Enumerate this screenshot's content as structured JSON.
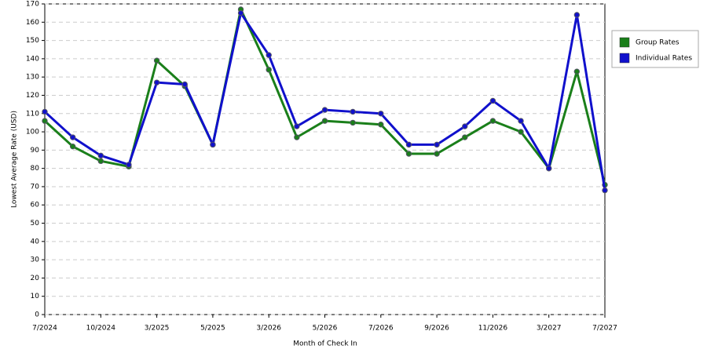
{
  "chart_data": {
    "type": "line",
    "x_label": "Month of Check In",
    "y_label": "Lowest Average Rate (USD)",
    "categories": [
      "7/2024",
      null,
      "10/2024",
      null,
      "3/2025",
      null,
      "5/2025",
      null,
      "3/2026",
      null,
      "5/2026",
      null,
      "7/2026",
      null,
      "9/2026",
      null,
      "11/2026",
      null,
      "3/2027",
      null,
      "7/2027"
    ],
    "series": [
      {
        "name": "Group Rates",
        "color": "#1a7f1a",
        "values": [
          106,
          92,
          84,
          81,
          139,
          125,
          93,
          167,
          134,
          97,
          106,
          105,
          104,
          88,
          88,
          97,
          106,
          100,
          80,
          133,
          71
        ]
      },
      {
        "name": "Individual Rates",
        "color": "#1010cc",
        "values": [
          111,
          97,
          87,
          82,
          127,
          126,
          93,
          165,
          142,
          103,
          112,
          111,
          110,
          93,
          93,
          103,
          117,
          106,
          80,
          164,
          68
        ]
      }
    ],
    "ylim": [
      0,
      170
    ],
    "yticks": [
      0,
      10,
      20,
      30,
      40,
      50,
      60,
      70,
      80,
      90,
      100,
      110,
      120,
      130,
      140,
      150,
      160,
      170
    ],
    "grid": true,
    "legend": "right"
  }
}
